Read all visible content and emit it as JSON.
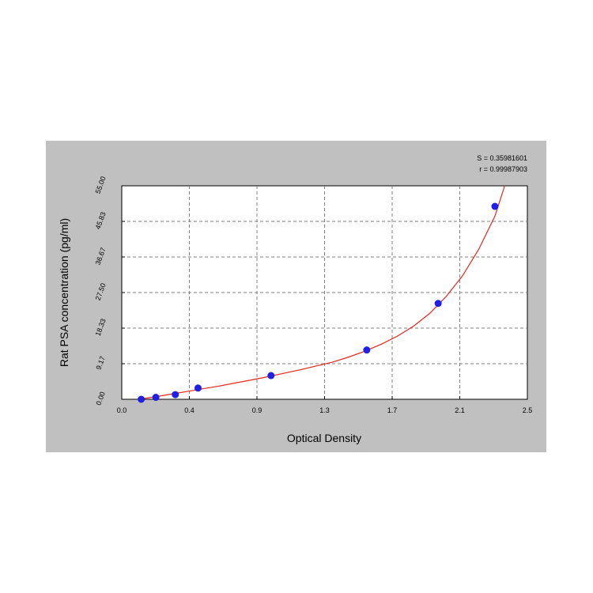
{
  "chart_data": {
    "type": "scatter",
    "xlabel": "Optical Density",
    "ylabel": "Rat PSA concentration (pg/ml)",
    "x_ticks": [
      "0.0",
      "0.4",
      "0.9",
      "1.3",
      "1.7",
      "2.1",
      "2.5"
    ],
    "y_ticks": [
      "0.00",
      "9.17",
      "18.33",
      "27.50",
      "36.67",
      "45.83",
      "55.00"
    ],
    "xlim": [
      0.0,
      2.5
    ],
    "ylim": [
      0.0,
      55.0
    ],
    "grid": true,
    "series": [
      {
        "points": [
          {
            "x": 0.12,
            "y": 0.0
          },
          {
            "x": 0.21,
            "y": 0.5
          },
          {
            "x": 0.33,
            "y": 1.2
          },
          {
            "x": 0.47,
            "y": 2.9
          },
          {
            "x": 0.92,
            "y": 6.1
          },
          {
            "x": 1.51,
            "y": 12.7
          },
          {
            "x": 1.95,
            "y": 24.7
          },
          {
            "x": 2.3,
            "y": 49.7
          }
        ]
      }
    ],
    "fit_curve": [
      {
        "x": 0.1,
        "y": 0.0
      },
      {
        "x": 0.2,
        "y": 0.6
      },
      {
        "x": 0.3,
        "y": 1.3
      },
      {
        "x": 0.4,
        "y": 2.0
      },
      {
        "x": 0.5,
        "y": 2.7
      },
      {
        "x": 0.6,
        "y": 3.4
      },
      {
        "x": 0.7,
        "y": 4.2
      },
      {
        "x": 0.8,
        "y": 5.0
      },
      {
        "x": 0.9,
        "y": 5.8
      },
      {
        "x": 1.0,
        "y": 6.7
      },
      {
        "x": 1.1,
        "y": 7.6
      },
      {
        "x": 1.2,
        "y": 8.6
      },
      {
        "x": 1.3,
        "y": 9.6
      },
      {
        "x": 1.4,
        "y": 10.9
      },
      {
        "x": 1.5,
        "y": 12.4
      },
      {
        "x": 1.6,
        "y": 14.2
      },
      {
        "x": 1.7,
        "y": 16.3
      },
      {
        "x": 1.8,
        "y": 18.9
      },
      {
        "x": 1.9,
        "y": 22.2
      },
      {
        "x": 2.0,
        "y": 26.5
      },
      {
        "x": 2.1,
        "y": 31.8
      },
      {
        "x": 2.2,
        "y": 38.6
      },
      {
        "x": 2.3,
        "y": 47.2
      },
      {
        "x": 2.36,
        "y": 55.0
      }
    ],
    "stats": {
      "s_line": "S = 0.35981601",
      "r_line": "r = 0.99987903"
    },
    "colors": {
      "panel_bg": "#c0c0c0",
      "plot_bg": "#ffffff",
      "point": "#1f1fe6",
      "curve": "#e8261c",
      "grid": "#808080"
    }
  }
}
